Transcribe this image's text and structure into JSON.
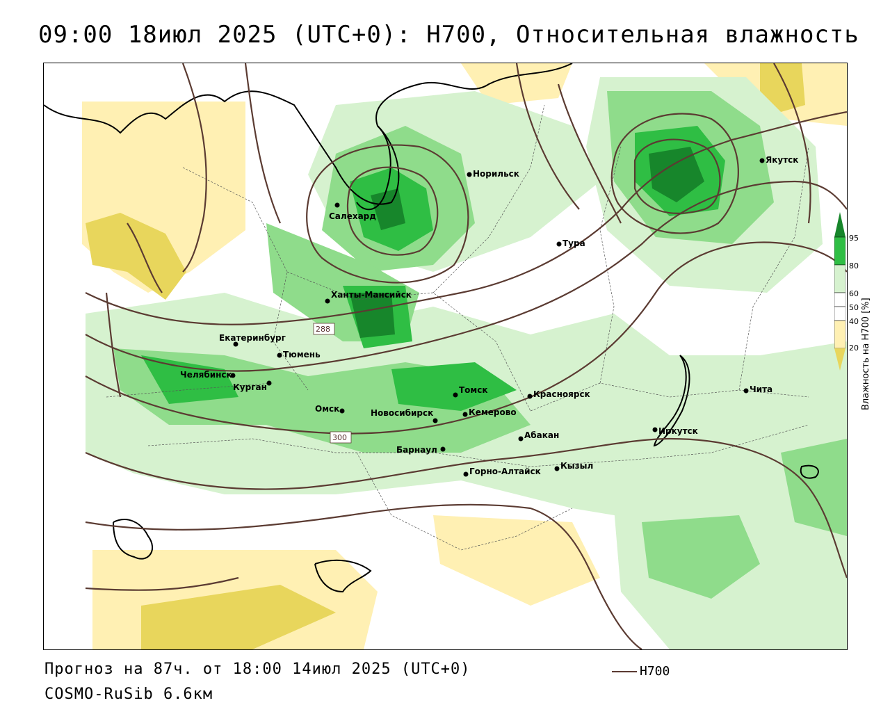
{
  "title": "09:00 18июл 2025 (UTC+0): H700, Относительная влажность",
  "footer": {
    "forecast": "Прогноз на 87ч. от 18:00 14июл 2025 (UTC+0)",
    "model": "COSMO-RuSib 6.6км"
  },
  "legend": {
    "line_label": "H700"
  },
  "colorbar": {
    "title": "Влажность на H700 [%]",
    "ticks": [
      "95",
      "80",
      "60",
      "50",
      "40",
      "20"
    ],
    "colors": {
      "very_humid": "#17862b",
      "humid": "#2fbe44",
      "moist": "#8fdc8b",
      "light": "#d6f2cf",
      "neutral": "#ffffff",
      "dry": "#fff0b3",
      "very_dry": "#e8d65c"
    }
  },
  "contours": {
    "labels": [
      "288",
      "300"
    ],
    "color": "#5b3b32"
  },
  "cities": [
    {
      "name": "Салехард"
    },
    {
      "name": "Норильск"
    },
    {
      "name": "Якутск"
    },
    {
      "name": "Тура"
    },
    {
      "name": "Ханты-Мансийск"
    },
    {
      "name": "Екатеринбург"
    },
    {
      "name": "Тюмень"
    },
    {
      "name": "Челябинск"
    },
    {
      "name": "Курган"
    },
    {
      "name": "Омск"
    },
    {
      "name": "Новосибирск"
    },
    {
      "name": "Томск"
    },
    {
      "name": "Кемерово"
    },
    {
      "name": "Красноярск"
    },
    {
      "name": "Абакан"
    },
    {
      "name": "Барнаул"
    },
    {
      "name": "Горно-Алтайск"
    },
    {
      "name": "Кызыл"
    },
    {
      "name": "Иркутск"
    },
    {
      "name": "Чита"
    }
  ]
}
